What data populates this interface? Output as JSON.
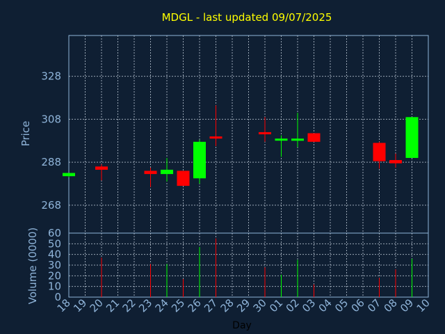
{
  "chart_data": [
    {
      "type": "candlestick",
      "title": "MDGL - last updated 09/07/2025",
      "xlabel": "Day",
      "ylabel": "Price",
      "ylim": [
        255,
        347
      ],
      "yticks": [
        268,
        288,
        308,
        328
      ],
      "grid": true,
      "up_color": "#00ff00",
      "down_color": "#ff0000",
      "x": [
        "18",
        "19",
        "20",
        "21",
        "22",
        "23",
        "24",
        "25",
        "26",
        "27",
        "28",
        "29",
        "30",
        "01",
        "02",
        "03",
        "04",
        "05",
        "06",
        "07",
        "08",
        "09",
        "10"
      ],
      "candles": [
        {
          "day": "18",
          "open": 281.5,
          "high": 283,
          "low": 281,
          "close": 283,
          "dir": "up"
        },
        {
          "day": "20",
          "open": 286,
          "high": 287,
          "low": 279.5,
          "close": 284.5,
          "dir": "down"
        },
        {
          "day": "23",
          "open": 284,
          "high": 285.5,
          "low": 276.5,
          "close": 282.5,
          "dir": "down"
        },
        {
          "day": "24",
          "open": 282.5,
          "high": 290,
          "low": 279,
          "close": 284.5,
          "dir": "up"
        },
        {
          "day": "25",
          "open": 284,
          "high": 284,
          "low": 277,
          "close": 277,
          "dir": "down"
        },
        {
          "day": "26",
          "open": 280.5,
          "high": 298.5,
          "low": 278,
          "close": 297.5,
          "dir": "up"
        },
        {
          "day": "27",
          "open": 300,
          "high": 314.5,
          "low": 295.5,
          "close": 299,
          "dir": "down"
        },
        {
          "day": "30",
          "open": 302,
          "high": 309,
          "low": 297.5,
          "close": 301,
          "dir": "down"
        },
        {
          "day": "01",
          "open": 298.5,
          "high": 300.5,
          "low": 290.5,
          "close": 299,
          "dir": "up"
        },
        {
          "day": "02",
          "open": 298,
          "high": 311,
          "low": 295,
          "close": 299,
          "dir": "up"
        },
        {
          "day": "03",
          "open": 301.5,
          "high": 301.5,
          "low": 297.5,
          "close": 297.5,
          "dir": "down"
        },
        {
          "day": "07",
          "open": 297,
          "high": 297.5,
          "low": 285,
          "close": 288.5,
          "dir": "down"
        },
        {
          "day": "08",
          "open": 289,
          "high": 292,
          "low": 285.5,
          "close": 287.5,
          "dir": "down"
        },
        {
          "day": "09",
          "open": 290,
          "high": 309,
          "low": 290,
          "close": 309,
          "dir": "up"
        }
      ]
    },
    {
      "type": "bar",
      "xlabel": "Day",
      "ylabel": "Volume (0000)",
      "ylim": [
        0,
        60
      ],
      "yticks": [
        0,
        10,
        20,
        30,
        40,
        50,
        60
      ],
      "grid": true,
      "volumes": [
        {
          "day": "20",
          "value": 37,
          "dir": "down"
        },
        {
          "day": "23",
          "value": 31,
          "dir": "down"
        },
        {
          "day": "24",
          "value": 31,
          "dir": "up"
        },
        {
          "day": "25",
          "value": 17,
          "dir": "down"
        },
        {
          "day": "26",
          "value": 47,
          "dir": "up"
        },
        {
          "day": "27",
          "value": 55,
          "dir": "down"
        },
        {
          "day": "30",
          "value": 28,
          "dir": "down"
        },
        {
          "day": "01",
          "value": 21,
          "dir": "up"
        },
        {
          "day": "02",
          "value": 35,
          "dir": "up"
        },
        {
          "day": "03",
          "value": 12,
          "dir": "down"
        },
        {
          "day": "07",
          "value": 18,
          "dir": "down"
        },
        {
          "day": "08",
          "value": 26,
          "dir": "down"
        },
        {
          "day": "09",
          "value": 36,
          "dir": "up"
        }
      ]
    }
  ]
}
